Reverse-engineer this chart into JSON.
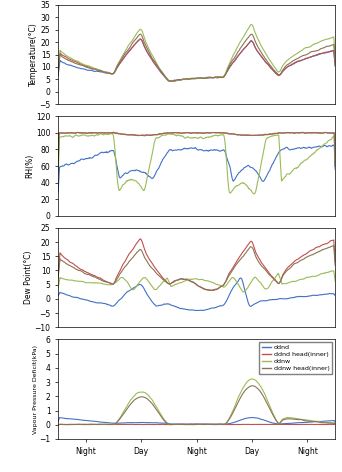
{
  "n_points": 600,
  "x_tick_positions": [
    60,
    180,
    300,
    420,
    540
  ],
  "x_tick_labels": [
    "Night",
    "Day",
    "Night",
    "Day",
    "Night"
  ],
  "colors": {
    "ddnd": "#4472c4",
    "ddnd_head": "#c0504d",
    "ddnw": "#9bbb59",
    "ddnw_head": "#8b7355"
  },
  "legend_labels": [
    "ddnd",
    "ddnd head(inner)",
    "ddnw",
    "ddnw head(inner)"
  ],
  "subplots": {
    "temp": {
      "ylabel": "Temperature(°C)",
      "ylim": [
        -5,
        35
      ],
      "yticks": [
        -5,
        0,
        5,
        10,
        15,
        20,
        25,
        30,
        35
      ]
    },
    "rh": {
      "ylabel": "RH(%)",
      "ylim": [
        0,
        120
      ],
      "yticks": [
        0,
        20,
        40,
        60,
        80,
        100,
        120
      ]
    },
    "dew": {
      "ylabel": "Dew Point(°C)",
      "ylim": [
        -10,
        25
      ],
      "yticks": [
        -10,
        -5,
        0,
        5,
        10,
        15,
        20,
        25
      ]
    },
    "vpd": {
      "ylabel": "Vapour Pressure Deficit(kPa)",
      "ylim": [
        -1,
        6
      ],
      "yticks": [
        -1,
        0,
        1,
        2,
        3,
        4,
        5,
        6
      ]
    }
  }
}
